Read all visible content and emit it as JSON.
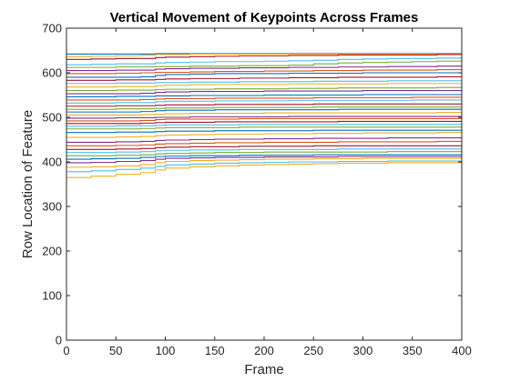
{
  "chart_data": {
    "type": "line",
    "title": "Vertical Movement of Keypoints Across Frames",
    "xlabel": "Frame",
    "ylabel": "Row Location of Feature",
    "xlim": [
      0,
      400
    ],
    "ylim": [
      0,
      700
    ],
    "xticks": [
      0,
      50,
      100,
      150,
      200,
      250,
      300,
      350,
      400
    ],
    "yticks": [
      0,
      100,
      200,
      300,
      400,
      500,
      600,
      700
    ],
    "grid": false,
    "legend": "none",
    "frames": [
      0,
      25,
      50,
      75,
      90,
      100,
      125,
      150,
      175,
      200,
      225,
      250,
      275,
      300,
      325,
      350,
      375,
      400
    ],
    "series": [
      {
        "color": "#0072BD",
        "values": [
          642,
          642,
          642,
          642,
          643,
          643,
          643,
          643,
          643,
          643,
          643,
          643,
          643,
          643,
          643,
          643,
          643,
          643
        ]
      },
      {
        "color": "#EDB120",
        "values": [
          636,
          637,
          638,
          639,
          641,
          641,
          642,
          642,
          642,
          642,
          642,
          642,
          642,
          642,
          642,
          642,
          642,
          642
        ]
      },
      {
        "color": "#A2142F",
        "values": [
          630,
          631,
          632,
          632,
          634,
          635,
          636,
          637,
          638,
          638,
          639,
          639,
          640,
          640,
          640,
          640,
          641,
          641
        ]
      },
      {
        "color": "#4DBEEE",
        "values": [
          618,
          619,
          620,
          620,
          622,
          623,
          624,
          625,
          625,
          626,
          627,
          628,
          630,
          631,
          632,
          632,
          633,
          633
        ]
      },
      {
        "color": "#77AC30",
        "values": [
          612,
          612,
          613,
          613,
          614,
          614,
          615,
          615,
          616,
          616,
          617,
          620,
          622,
          623,
          624,
          625,
          626,
          627
        ]
      },
      {
        "color": "#7E2F8E",
        "values": [
          605,
          605,
          606,
          606,
          608,
          609,
          610,
          610,
          611,
          611,
          612,
          612,
          613,
          613,
          614,
          614,
          615,
          615
        ]
      },
      {
        "color": "#D95319",
        "values": [
          598,
          598,
          599,
          600,
          601,
          601,
          602,
          603,
          603,
          604,
          604,
          605,
          605,
          606,
          606,
          606,
          607,
          607
        ]
      },
      {
        "color": "#0072BD",
        "values": [
          590,
          590,
          590,
          591,
          594,
          596,
          597,
          598,
          598,
          598,
          599,
          599,
          599,
          600,
          600,
          600,
          600,
          600
        ]
      },
      {
        "color": "#A2142F",
        "values": [
          583,
          583,
          584,
          584,
          585,
          586,
          587,
          587,
          588,
          588,
          589,
          589,
          590,
          590,
          590,
          590,
          591,
          591
        ]
      },
      {
        "color": "#4DBEEE",
        "values": [
          576,
          576,
          577,
          577,
          578,
          578,
          579,
          579,
          580,
          580,
          580,
          581,
          581,
          581,
          582,
          582,
          582,
          582
        ]
      },
      {
        "color": "#EDB120",
        "values": [
          568,
          568,
          569,
          569,
          571,
          572,
          573,
          574,
          574,
          574,
          575,
          575,
          575,
          575,
          576,
          576,
          576,
          576
        ]
      },
      {
        "color": "#77AC30",
        "values": [
          560,
          560,
          561,
          561,
          562,
          563,
          563,
          564,
          564,
          564,
          565,
          565,
          566,
          566,
          566,
          566,
          567,
          567
        ]
      },
      {
        "color": "#7E2F8E",
        "values": [
          553,
          553,
          553,
          554,
          556,
          557,
          558,
          558,
          558,
          559,
          559,
          559,
          559,
          560,
          560,
          560,
          560,
          560
        ]
      },
      {
        "color": "#0072BD",
        "values": [
          546,
          546,
          547,
          547,
          548,
          548,
          549,
          549,
          549,
          550,
          550,
          550,
          550,
          551,
          551,
          551,
          551,
          551
        ]
      },
      {
        "color": "#D95319",
        "values": [
          539,
          539,
          539,
          540,
          541,
          542,
          542,
          543,
          543,
          543,
          543,
          544,
          544,
          544,
          544,
          545,
          545,
          545
        ]
      },
      {
        "color": "#4DBEEE",
        "values": [
          532,
          532,
          533,
          533,
          535,
          536,
          536,
          537,
          537,
          537,
          538,
          538,
          538,
          538,
          538,
          539,
          539,
          539
        ]
      },
      {
        "color": "#A2142F",
        "values": [
          525,
          525,
          526,
          526,
          527,
          528,
          528,
          529,
          529,
          529,
          529,
          530,
          530,
          530,
          530,
          530,
          530,
          530
        ]
      },
      {
        "color": "#77AC30",
        "values": [
          518,
          518,
          519,
          519,
          520,
          521,
          521,
          522,
          522,
          522,
          522,
          523,
          523,
          523,
          523,
          523,
          523,
          523
        ]
      },
      {
        "color": "#0072BD",
        "values": [
          512,
          512,
          512,
          513,
          515,
          516,
          516,
          517,
          517,
          517,
          517,
          517,
          518,
          518,
          518,
          518,
          518,
          518
        ]
      },
      {
        "color": "#EDB120",
        "values": [
          505,
          505,
          505,
          506,
          507,
          508,
          509,
          509,
          509,
          510,
          510,
          510,
          510,
          510,
          510,
          510,
          511,
          511
        ]
      },
      {
        "color": "#7E2F8E",
        "values": [
          498,
          498,
          499,
          499,
          500,
          500,
          501,
          501,
          501,
          501,
          502,
          502,
          502,
          502,
          502,
          502,
          502,
          502
        ]
      },
      {
        "color": "#D95319",
        "values": [
          492,
          492,
          492,
          493,
          495,
          496,
          496,
          496,
          497,
          497,
          497,
          497,
          497,
          497,
          497,
          497,
          497,
          497
        ]
      },
      {
        "color": "#A2142F",
        "values": [
          486,
          486,
          486,
          487,
          488,
          489,
          489,
          490,
          490,
          490,
          490,
          490,
          491,
          491,
          491,
          491,
          491,
          491
        ]
      },
      {
        "color": "#4DBEEE",
        "values": [
          480,
          480,
          481,
          481,
          482,
          483,
          483,
          483,
          484,
          484,
          484,
          484,
          484,
          484,
          484,
          484,
          484,
          484
        ]
      },
      {
        "color": "#77AC30",
        "values": [
          474,
          474,
          474,
          475,
          476,
          477,
          477,
          477,
          478,
          478,
          478,
          478,
          478,
          478,
          478,
          478,
          478,
          478
        ]
      },
      {
        "color": "#0072BD",
        "values": [
          466,
          466,
          467,
          467,
          468,
          469,
          469,
          470,
          470,
          470,
          470,
          471,
          471,
          471,
          471,
          471,
          471,
          471
        ]
      },
      {
        "color": "#EDB120",
        "values": [
          455,
          455,
          456,
          457,
          459,
          460,
          461,
          462,
          462,
          463,
          463,
          464,
          464,
          465,
          465,
          465,
          466,
          466
        ]
      },
      {
        "color": "#7E2F8E",
        "values": [
          444,
          444,
          445,
          446,
          448,
          449,
          450,
          451,
          451,
          452,
          452,
          453,
          453,
          453,
          454,
          454,
          454,
          454
        ]
      },
      {
        "color": "#D95319",
        "values": [
          436,
          436,
          437,
          438,
          440,
          441,
          442,
          443,
          443,
          444,
          444,
          444,
          445,
          445,
          445,
          445,
          446,
          446
        ]
      },
      {
        "color": "#A2142F",
        "values": [
          428,
          428,
          429,
          430,
          432,
          433,
          434,
          434,
          435,
          435,
          435,
          436,
          436,
          436,
          436,
          436,
          436,
          436
        ]
      },
      {
        "color": "#4DBEEE",
        "values": [
          421,
          421,
          422,
          423,
          425,
          426,
          427,
          427,
          428,
          428,
          428,
          428,
          429,
          429,
          429,
          429,
          429,
          429
        ]
      },
      {
        "color": "#77AC30",
        "values": [
          414,
          414,
          415,
          416,
          418,
          419,
          420,
          421,
          421,
          422,
          422,
          422,
          422,
          422,
          423,
          423,
          423,
          423
        ]
      },
      {
        "color": "#0072BD",
        "values": [
          406,
          407,
          408,
          410,
          412,
          413,
          414,
          414,
          415,
          415,
          415,
          416,
          416,
          416,
          416,
          416,
          416,
          416
        ]
      },
      {
        "color": "#7E2F8E",
        "values": [
          398,
          399,
          401,
          403,
          406,
          408,
          409,
          410,
          410,
          411,
          411,
          411,
          412,
          412,
          412,
          412,
          412,
          412
        ]
      },
      {
        "color": "#EDB120",
        "values": [
          388,
          389,
          391,
          394,
          398,
          401,
          403,
          404,
          405,
          406,
          406,
          407,
          407,
          408,
          408,
          408,
          408,
          408
        ]
      },
      {
        "color": "#4DBEEE",
        "values": [
          378,
          380,
          383,
          386,
          390,
          393,
          395,
          397,
          398,
          399,
          400,
          400,
          401,
          401,
          402,
          402,
          402,
          402
        ]
      },
      {
        "color": "#EDB120",
        "values": [
          365,
          368,
          372,
          376,
          382,
          386,
          389,
          391,
          393,
          394,
          395,
          396,
          397,
          397,
          398,
          398,
          398,
          398
        ]
      }
    ]
  }
}
